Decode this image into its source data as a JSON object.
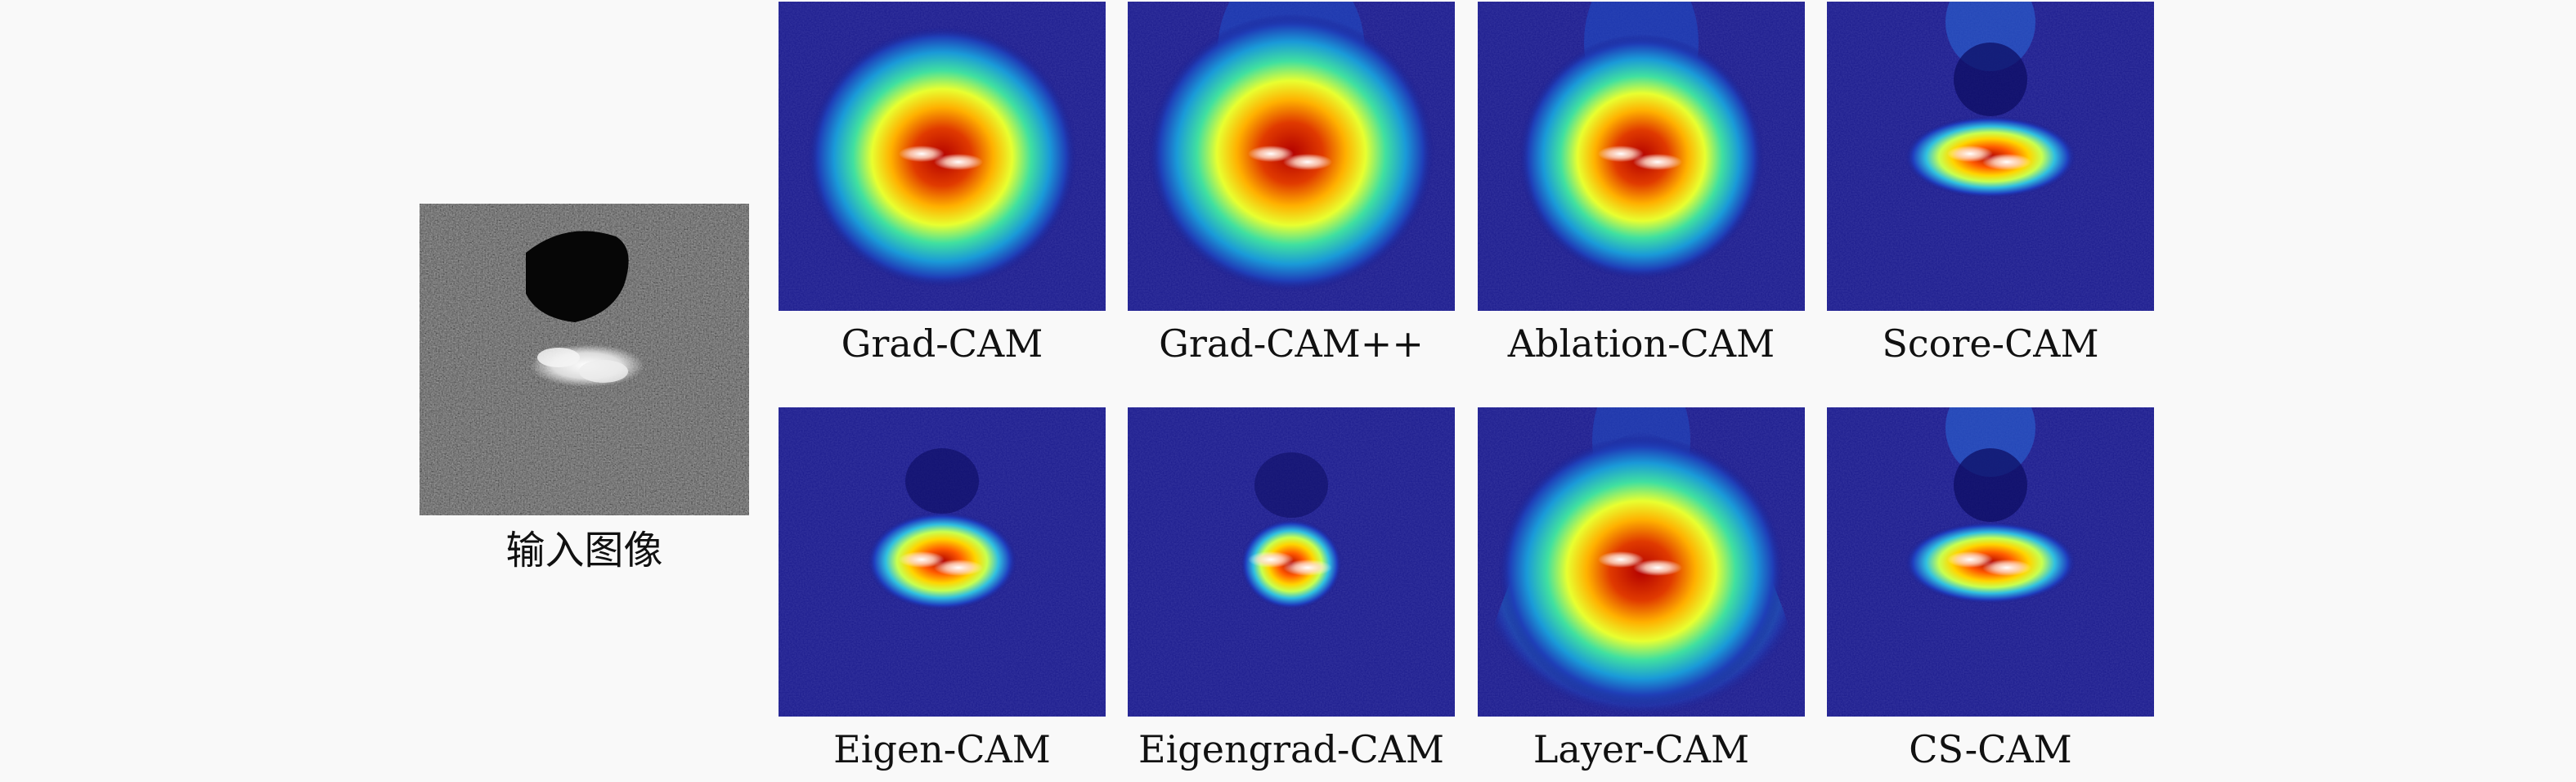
{
  "input": {
    "label": "输入图像"
  },
  "heatmaps": [
    {
      "id": "gradcam",
      "label": "Grad-CAM",
      "variant": "large-blob"
    },
    {
      "id": "gradcampp",
      "label": "Grad-CAM++",
      "variant": "large-blob-tail"
    },
    {
      "id": "ablationcam",
      "label": "Ablation-CAM",
      "variant": "medium-blob-tail"
    },
    {
      "id": "scorecam",
      "label": "Score-CAM",
      "variant": "flat-ellipse-tail"
    },
    {
      "id": "eigencam",
      "label": "Eigen-CAM",
      "variant": "small-ellipse"
    },
    {
      "id": "eigengradcam",
      "label": "Eigengrad-CAM",
      "variant": "tiny-blob"
    },
    {
      "id": "layercam",
      "label": "Layer-CAM",
      "variant": "large-bell"
    },
    {
      "id": "cscam",
      "label": "CS-CAM",
      "variant": "flat-ellipse-tail"
    }
  ],
  "colors": {
    "background": "#f9f9f9",
    "jet_low": "#1a1a8c",
    "jet_high": "#b30000"
  }
}
